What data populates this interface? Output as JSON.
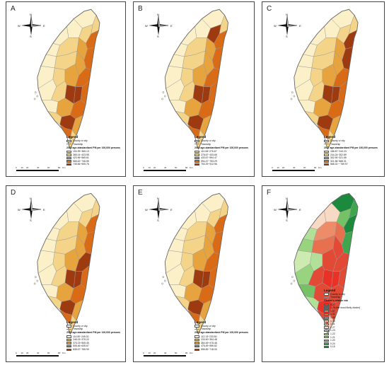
{
  "panels": [
    {
      "id": "A",
      "letter": "A",
      "legend": {
        "title": "Legend",
        "county_label": "County or city",
        "township_label": "Township",
        "heading": "2015 age-standardized PM per 100,000 persons",
        "classes": [
          {
            "range": "194.99~365.13",
            "color": "#fbf0c8"
          },
          {
            "range": "365.14~423.95",
            "color": "#f4d489"
          },
          {
            "range": "423.96~565.61",
            "color": "#e7a33e"
          },
          {
            "range": "565.62~745.55",
            "color": "#d96b17"
          },
          {
            "range": "745.56~905.76",
            "color": "#9e3a10"
          }
        ]
      }
    },
    {
      "id": "B",
      "letter": "B",
      "legend": {
        "title": "Legend",
        "county_label": "County or city",
        "township_label": "Township",
        "heading": "2016 age-standardized PM per 100,000 persons",
        "classes": [
          {
            "range": "110.08~276.67",
            "color": "#fbf0c8"
          },
          {
            "range": "276.67~433.66",
            "color": "#f4d489"
          },
          {
            "range": "433.67~594.47",
            "color": "#e7a33e"
          },
          {
            "range": "594.47~753.29",
            "color": "#d96b17"
          },
          {
            "range": "753.29~912.96",
            "color": "#9e3a10"
          }
        ]
      }
    },
    {
      "id": "C",
      "letter": "C",
      "legend": {
        "title": "Legend",
        "county_label": "County or city",
        "township_label": "Township",
        "heading": "2017 age-standardized PM per 100,000 persons",
        "classes": [
          {
            "range": "186.87~244.23",
            "color": "#fbf0c8"
          },
          {
            "range": "244.24~302.89",
            "color": "#f4d489"
          },
          {
            "range": "302.90~321.55",
            "color": "#e7a33e"
          },
          {
            "range": "321.56~568.31",
            "color": "#d96b17"
          },
          {
            "range": "568.31~~769.97",
            "color": "#9e3a10"
          }
        ]
      }
    },
    {
      "id": "D",
      "letter": "D",
      "legend": {
        "title": "Legend",
        "county_label": "County or city",
        "township_label": "Township",
        "heading": "2018 age-standardized PM per 100,000 persons",
        "classes": [
          {
            "range": "114.80~245.02",
            "color": "#fbf0c8"
          },
          {
            "range": "245.03~375.22",
            "color": "#f4d489"
          },
          {
            "range": "375.23~505.45",
            "color": "#e7a33e"
          },
          {
            "range": "505.46~635.67",
            "color": "#d96b17"
          },
          {
            "range": "635.67~765.90",
            "color": "#9e3a10"
          }
        ]
      }
    },
    {
      "id": "E",
      "letter": "E",
      "legend": {
        "title": "Legend",
        "county_label": "County or city",
        "township_label": "Township",
        "heading": "2019 age-standardized PM per 100,000 persons",
        "classes": [
          {
            "range": "112.13~233.50",
            "color": "#fbf0c8"
          },
          {
            "range": "233.50~354.48",
            "color": "#f4d489"
          },
          {
            "range": "354.49~475.48",
            "color": "#e7a33e"
          },
          {
            "range": "475.49~596.82",
            "color": "#d96b17"
          },
          {
            "range": "596.82~718.00",
            "color": "#9e3a10"
          }
        ]
      }
    },
    {
      "id": "F",
      "letter": "F",
      "legend": {
        "title": "Legend",
        "county_label": "County or city",
        "township_label": "Township",
        "heading": "Cluster's relative risk",
        "classes": [
          {
            "range": "2.27",
            "color": "#e83228"
          },
          {
            "range": "1.78 (the most likely cluster)",
            "color": "#e24a35"
          },
          {
            "range": "1.57",
            "color": "#e7704f"
          },
          {
            "range": "1.41",
            "color": "#ec8c69"
          },
          {
            "range": "1.40",
            "color": "#f0a27d"
          },
          {
            "range": "1.38",
            "color": "#f3b594"
          },
          {
            "range": "1.31",
            "color": "#f6c9ad"
          },
          {
            "range": "1.27",
            "color": "#f8d9c4"
          },
          {
            "range": "1.23",
            "color": "#cdebb0"
          },
          {
            "range": "1.22",
            "color": "#b3e099"
          },
          {
            "range": "1.21",
            "color": "#98d47f"
          },
          {
            "range": "1.20",
            "color": "#74c166"
          },
          {
            "range": "0.24",
            "color": "#3fa64f"
          },
          {
            "range": "0.15",
            "color": "#1b8a3c"
          }
        ]
      }
    }
  ],
  "compass": {
    "n": "N",
    "s": "S",
    "e": "E",
    "w": "W"
  },
  "scale": {
    "ticks": [
      "0",
      "10",
      "20",
      "40",
      "60",
      "80"
    ],
    "unit": "Km"
  },
  "colors": {
    "border": "#666666",
    "township_line": "#9a9a9a",
    "sea": "#ffffff"
  }
}
